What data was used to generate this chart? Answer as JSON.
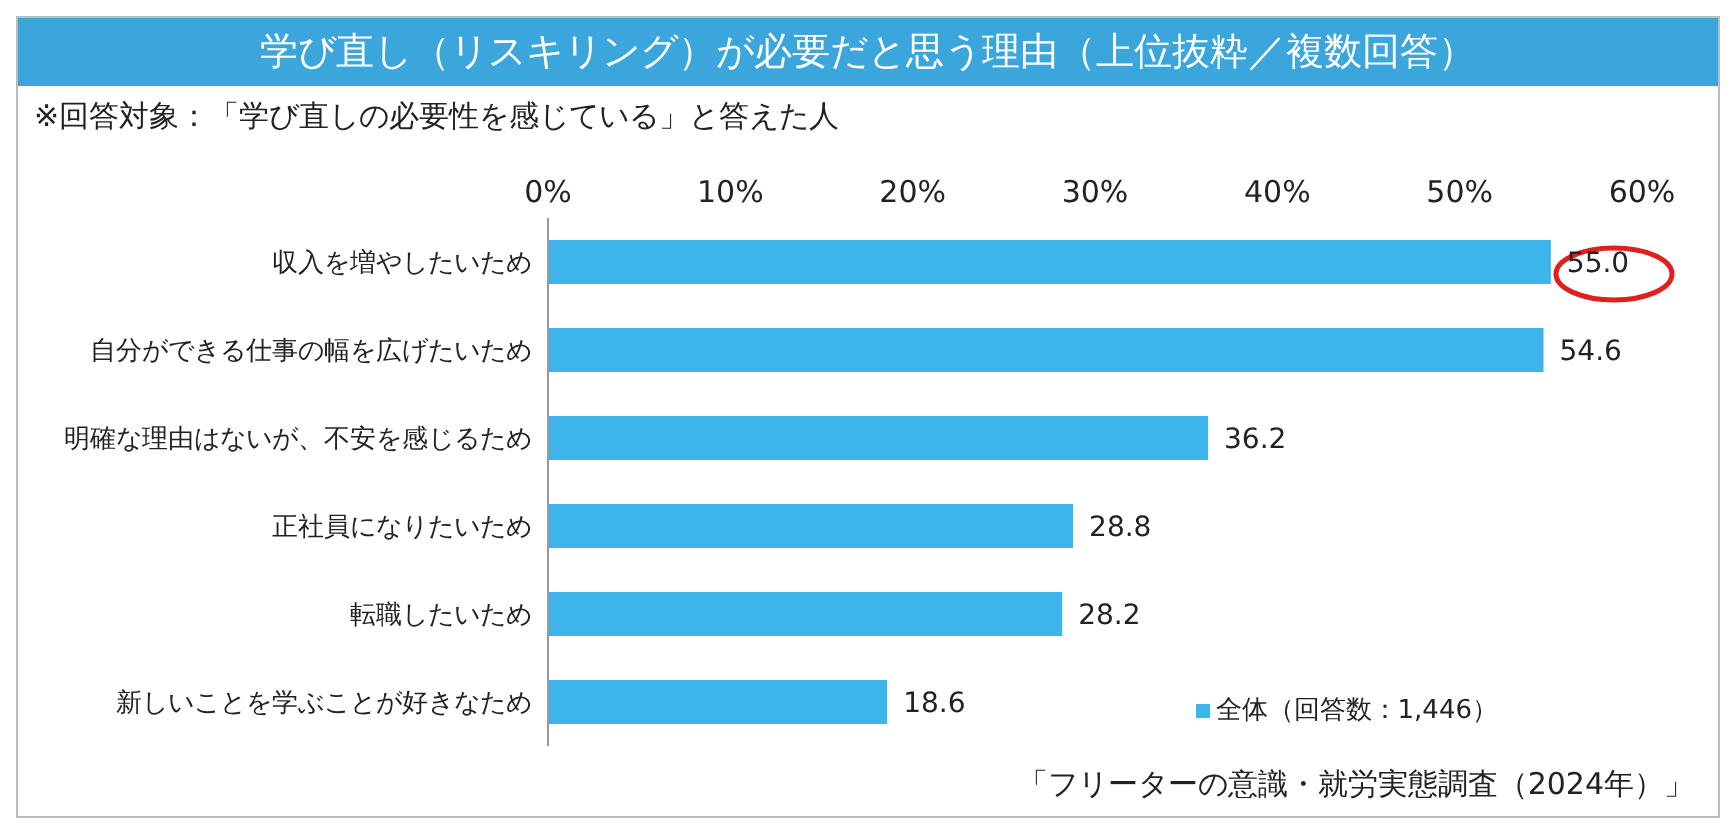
{
  "chart_data": {
    "type": "bar",
    "orientation": "horizontal",
    "title": "学び直し（リスキリング）が必要だと思う理由（上位抜粋／複数回答）",
    "subtitle": "※回答対象：「学び直しの必要性を感じている」と答えた人",
    "categories": [
      "収入を増やしたいため",
      "自分ができる仕事の幅を広げたいため",
      "明確な理由はないが、不安を感じるため",
      "正社員になりたいため",
      "転職したいため",
      "新しいことを学ぶことが好きなため"
    ],
    "series": [
      {
        "name": "全体（回答数：1,446）",
        "color": "#3db5ea",
        "values": [
          55.0,
          54.6,
          36.2,
          28.8,
          28.2,
          18.6
        ],
        "value_labels": [
          "55.0",
          "54.6",
          "36.2",
          "28.8",
          "28.2",
          "18.6"
        ]
      }
    ],
    "xlim": [
      0,
      60
    ],
    "xticks": [
      {
        "value": 0,
        "label": "0%"
      },
      {
        "value": 10,
        "label": "10%"
      },
      {
        "value": 20,
        "label": "20%"
      },
      {
        "value": 30,
        "label": "30%"
      },
      {
        "value": 40,
        "label": "40%"
      },
      {
        "value": 50,
        "label": "50%"
      },
      {
        "value": 60,
        "label": "60%"
      }
    ],
    "grid": false,
    "legend": "bottom right",
    "annotations": [
      "「フリーターの意識・就労実態調査（2024年）」"
    ]
  }
}
